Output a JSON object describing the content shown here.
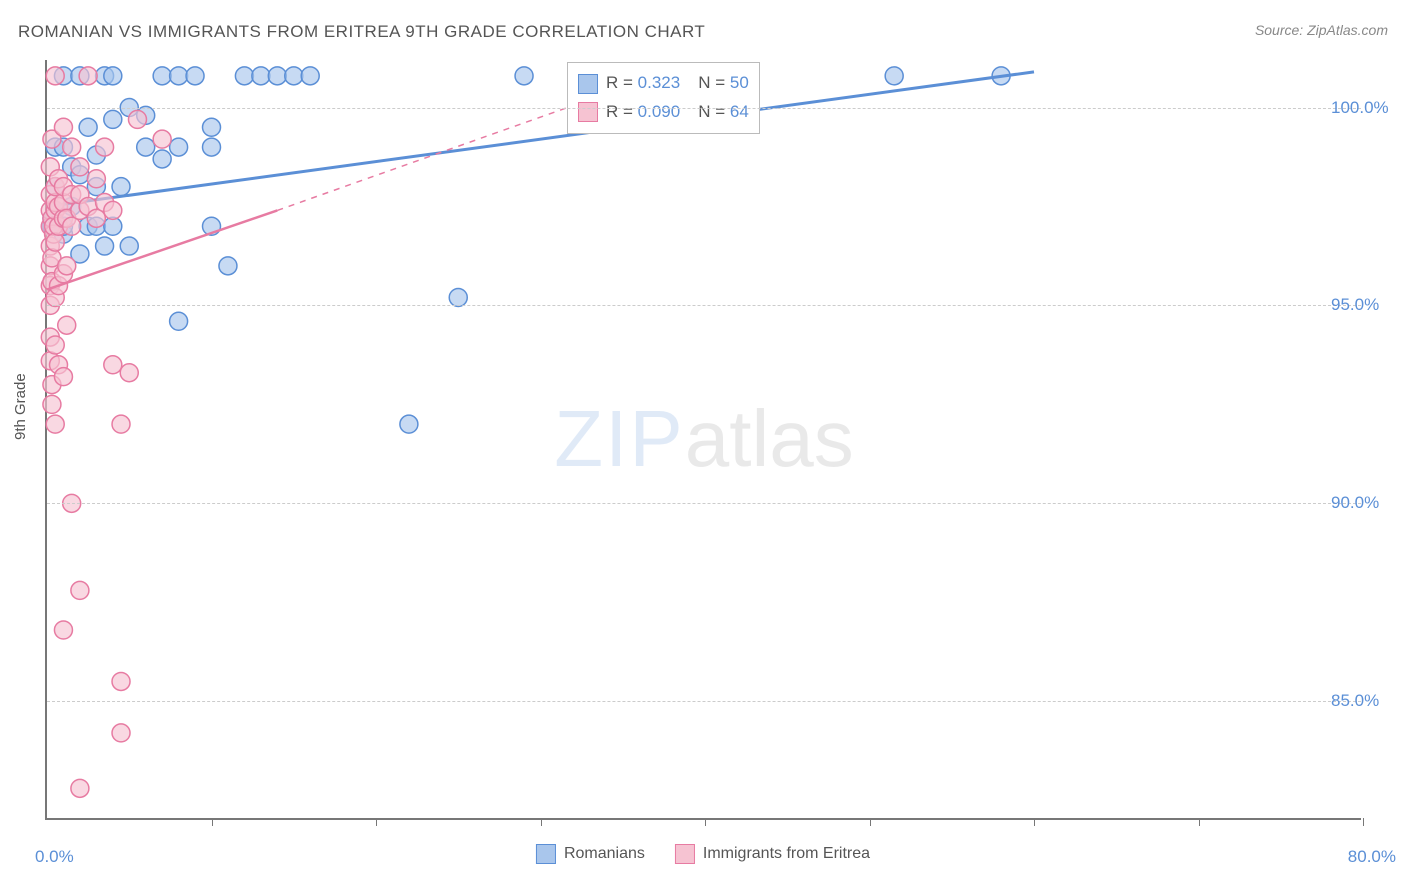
{
  "title": "ROMANIAN VS IMMIGRANTS FROM ERITREA 9TH GRADE CORRELATION CHART",
  "source_label": "Source: ",
  "source_name": "ZipAtlas.com",
  "ylabel": "9th Grade",
  "watermark_zip": "ZIP",
  "watermark_atlas": "atlas",
  "chart": {
    "type": "scatter",
    "background_color": "#ffffff",
    "grid_color": "#cccccc",
    "axis_color": "#777777",
    "tick_label_color": "#5b8fd6",
    "xlim": [
      0,
      80
    ],
    "ylim": [
      82,
      101.2
    ],
    "x_origin_label": "0.0%",
    "x_end_label": "80.0%",
    "x_tick_positions": [
      10,
      20,
      30,
      40,
      50,
      60,
      70,
      80
    ],
    "y_ticks": [
      {
        "v": 100,
        "label": "100.0%"
      },
      {
        "v": 95,
        "label": "95.0%"
      },
      {
        "v": 90,
        "label": "90.0%"
      },
      {
        "v": 85,
        "label": "85.0%"
      }
    ],
    "series": [
      {
        "id": "romanians",
        "name": "Romanians",
        "fill": "#a9c6ec",
        "stroke": "#5b8fd6",
        "marker_radius": 9,
        "marker_opacity": 0.65,
        "trend": {
          "x1": 0,
          "y1": 97.5,
          "x2": 60,
          "y2": 100.9,
          "dash_extend": false,
          "stroke_width": 3
        },
        "stats": {
          "R": "0.323",
          "N": "50"
        },
        "points": [
          [
            0.3,
            97.0
          ],
          [
            0.3,
            97.2
          ],
          [
            0.5,
            97.4
          ],
          [
            0.5,
            98.0
          ],
          [
            0.5,
            99.0
          ],
          [
            1.0,
            96.8
          ],
          [
            1.0,
            97.0
          ],
          [
            1.0,
            99.0
          ],
          [
            1.0,
            100.8
          ],
          [
            1.5,
            97.5
          ],
          [
            1.5,
            98.5
          ],
          [
            2.0,
            96.3
          ],
          [
            2.0,
            98.3
          ],
          [
            2.0,
            100.8
          ],
          [
            2.5,
            97.0
          ],
          [
            2.5,
            99.5
          ],
          [
            3.0,
            97.0
          ],
          [
            3.0,
            98.0
          ],
          [
            3.0,
            98.8
          ],
          [
            3.5,
            96.5
          ],
          [
            3.5,
            100.8
          ],
          [
            4.0,
            97.0
          ],
          [
            4.0,
            99.7
          ],
          [
            4.0,
            100.8
          ],
          [
            4.5,
            98.0
          ],
          [
            5.0,
            96.5
          ],
          [
            5.0,
            100.0
          ],
          [
            6.0,
            99.0
          ],
          [
            6.0,
            99.8
          ],
          [
            7.0,
            98.7
          ],
          [
            7.0,
            100.8
          ],
          [
            8.0,
            94.6
          ],
          [
            8.0,
            99.0
          ],
          [
            8.0,
            100.8
          ],
          [
            9.0,
            100.8
          ],
          [
            10.0,
            97.0
          ],
          [
            10.0,
            99.0
          ],
          [
            10.0,
            99.5
          ],
          [
            11.0,
            96.0
          ],
          [
            12.0,
            100.8
          ],
          [
            13.0,
            100.8
          ],
          [
            14.0,
            100.8
          ],
          [
            15.0,
            100.8
          ],
          [
            16.0,
            100.8
          ],
          [
            22.0,
            92.0
          ],
          [
            25.0,
            95.2
          ],
          [
            29.0,
            100.8
          ],
          [
            34.0,
            100.8
          ],
          [
            51.5,
            100.8
          ],
          [
            58.0,
            100.8
          ]
        ]
      },
      {
        "id": "eritrea",
        "name": "Immigrants from Eritrea",
        "fill": "#f6c3d2",
        "stroke": "#e77ba2",
        "marker_radius": 9,
        "marker_opacity": 0.65,
        "trend": {
          "x1": 0,
          "y1": 95.4,
          "x2": 14,
          "y2": 97.4,
          "dash_extend": true,
          "dash_x2": 33,
          "dash_y2": 100.2,
          "stroke_width": 2.5
        },
        "stats": {
          "R": "0.090",
          "N": "64"
        },
        "points": [
          [
            0.2,
            93.6
          ],
          [
            0.2,
            94.2
          ],
          [
            0.2,
            95.0
          ],
          [
            0.2,
            95.5
          ],
          [
            0.2,
            96.0
          ],
          [
            0.2,
            96.5
          ],
          [
            0.2,
            97.0
          ],
          [
            0.2,
            97.4
          ],
          [
            0.2,
            97.8
          ],
          [
            0.2,
            98.5
          ],
          [
            0.3,
            92.5
          ],
          [
            0.3,
            93.0
          ],
          [
            0.3,
            95.6
          ],
          [
            0.3,
            96.2
          ],
          [
            0.3,
            97.2
          ],
          [
            0.3,
            99.2
          ],
          [
            0.4,
            96.8
          ],
          [
            0.4,
            97.0
          ],
          [
            0.5,
            92.0
          ],
          [
            0.5,
            94.0
          ],
          [
            0.5,
            95.2
          ],
          [
            0.5,
            96.6
          ],
          [
            0.5,
            97.4
          ],
          [
            0.5,
            97.6
          ],
          [
            0.5,
            98.0
          ],
          [
            0.5,
            100.8
          ],
          [
            0.7,
            93.5
          ],
          [
            0.7,
            95.5
          ],
          [
            0.7,
            97.0
          ],
          [
            0.7,
            97.5
          ],
          [
            0.7,
            98.2
          ],
          [
            1.0,
            86.8
          ],
          [
            1.0,
            93.2
          ],
          [
            1.0,
            95.8
          ],
          [
            1.0,
            97.2
          ],
          [
            1.0,
            97.6
          ],
          [
            1.0,
            98.0
          ],
          [
            1.0,
            99.5
          ],
          [
            1.2,
            94.5
          ],
          [
            1.2,
            96.0
          ],
          [
            1.2,
            97.2
          ],
          [
            1.5,
            90.0
          ],
          [
            1.5,
            97.0
          ],
          [
            1.5,
            97.8
          ],
          [
            1.5,
            99.0
          ],
          [
            2.0,
            82.8
          ],
          [
            2.0,
            87.8
          ],
          [
            2.0,
            97.4
          ],
          [
            2.0,
            97.8
          ],
          [
            2.0,
            98.5
          ],
          [
            2.5,
            97.5
          ],
          [
            2.5,
            100.8
          ],
          [
            3.0,
            97.2
          ],
          [
            3.0,
            98.2
          ],
          [
            3.5,
            97.6
          ],
          [
            3.5,
            99.0
          ],
          [
            4.0,
            93.5
          ],
          [
            4.0,
            97.4
          ],
          [
            4.5,
            85.5
          ],
          [
            4.5,
            84.2
          ],
          [
            4.5,
            92.0
          ],
          [
            5.0,
            93.3
          ],
          [
            5.5,
            99.7
          ],
          [
            7.0,
            99.2
          ]
        ]
      }
    ]
  },
  "legend_bottom": [
    {
      "swatch_fill": "#a9c6ec",
      "swatch_stroke": "#5b8fd6",
      "label": "Romanians"
    },
    {
      "swatch_fill": "#f6c3d2",
      "swatch_stroke": "#e77ba2",
      "label": "Immigrants from Eritrea"
    }
  ],
  "stats_box": {
    "rows": [
      {
        "swatch_fill": "#a9c6ec",
        "swatch_stroke": "#5b8fd6",
        "R_label": "R = ",
        "R": "0.323",
        "N_label": "N = ",
        "N": "50"
      },
      {
        "swatch_fill": "#f6c3d2",
        "swatch_stroke": "#e77ba2",
        "R_label": "R = ",
        "R": "0.090",
        "N_label": "N = ",
        "N": "64"
      }
    ]
  }
}
